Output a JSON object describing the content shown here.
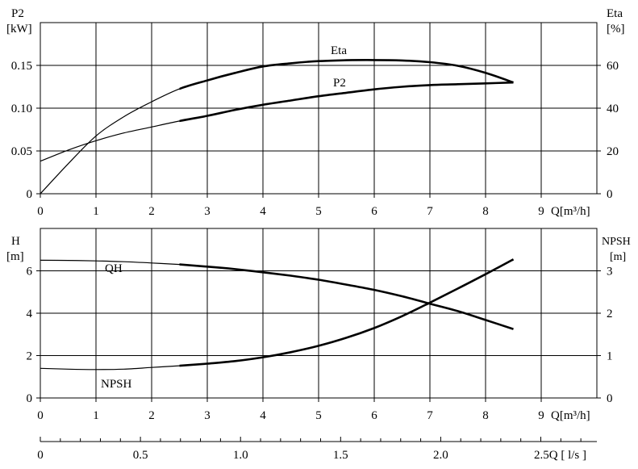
{
  "chart_data": [
    {
      "type": "line",
      "x_axis": {
        "label": "Q[m³/h]",
        "range": [
          0,
          10
        ],
        "tick_labels": [
          "0",
          "1",
          "2",
          "3",
          "4",
          "5",
          "6",
          "7",
          "8",
          "9"
        ]
      },
      "y_left": {
        "title": "P2",
        "unit": "[kW]",
        "range": [
          0,
          0.2
        ],
        "tick_labels": [
          "0",
          "0.05",
          "0.10",
          "0.15"
        ],
        "tick_values": [
          0,
          0.05,
          0.1,
          0.15
        ]
      },
      "y_right": {
        "title": "Eta",
        "unit": "[%]",
        "range": [
          0,
          80
        ],
        "tick_labels": [
          "0",
          "20",
          "40",
          "60"
        ],
        "tick_values": [
          0,
          20,
          40,
          60
        ]
      },
      "grid": true,
      "series": [
        {
          "name": "P2",
          "axis": "left",
          "x": [
            0,
            0.5,
            1,
            1.5,
            2,
            2.5,
            3,
            3.5,
            4,
            4.5,
            5,
            5.5,
            6,
            6.5,
            7,
            7.5,
            8,
            8.5
          ],
          "y": [
            0.038,
            0.051,
            0.062,
            0.071,
            0.078,
            0.085,
            0.091,
            0.098,
            0.104,
            0.109,
            0.114,
            0.118,
            0.122,
            0.125,
            0.127,
            0.128,
            0.129,
            0.13
          ]
        },
        {
          "name": "Eta",
          "axis": "right",
          "x": [
            0,
            0.5,
            1,
            1.5,
            2,
            2.5,
            3,
            3.5,
            4,
            4.5,
            5,
            5.5,
            6,
            6.5,
            7,
            7.5,
            8,
            8.5
          ],
          "y": [
            0,
            14,
            27,
            36,
            43,
            49,
            53,
            56.5,
            59.5,
            61,
            62,
            62.4,
            62.5,
            62.3,
            61.5,
            59.8,
            56.5,
            52
          ]
        }
      ]
    },
    {
      "type": "line",
      "x_axis": {
        "label": "Q[m³/h]",
        "range": [
          0,
          10
        ],
        "tick_labels": [
          "0",
          "1",
          "2",
          "3",
          "4",
          "5",
          "6",
          "7",
          "8",
          "9"
        ]
      },
      "x2_axis": {
        "label": "2.5Q [ l/s ]",
        "range": [
          0,
          2.78
        ],
        "tick_labels": [
          "0",
          "0.5",
          "1.0",
          "1.5",
          "2.0"
        ],
        "tick_values": [
          0,
          0.5,
          1.0,
          1.5,
          2.0
        ]
      },
      "y_left": {
        "title": "H",
        "unit": "[m]",
        "range": [
          0,
          8
        ],
        "tick_labels": [
          "0",
          "2",
          "4",
          "6"
        ],
        "tick_values": [
          0,
          2,
          4,
          6
        ]
      },
      "y_right": {
        "title": "NPSH",
        "unit": "[m]",
        "range": [
          0,
          4
        ],
        "tick_labels": [
          "0",
          "1",
          "2",
          "3"
        ],
        "tick_values": [
          0,
          1,
          2,
          3
        ]
      },
      "grid": true,
      "series": [
        {
          "name": "QH",
          "axis": "left",
          "x": [
            0,
            0.5,
            1,
            1.5,
            2,
            2.5,
            3,
            3.5,
            4,
            4.5,
            5,
            5.5,
            6,
            6.5,
            7,
            7.5,
            8,
            8.5
          ],
          "y": [
            6.5,
            6.49,
            6.47,
            6.43,
            6.37,
            6.3,
            6.2,
            6.08,
            5.93,
            5.77,
            5.58,
            5.35,
            5.1,
            4.8,
            4.45,
            4.1,
            3.68,
            3.25
          ]
        },
        {
          "name": "NPSH",
          "axis": "right",
          "x": [
            0,
            0.5,
            1,
            1.5,
            2,
            2.5,
            3,
            3.5,
            4,
            4.5,
            5,
            5.5,
            6,
            6.5,
            7,
            7.5,
            8,
            8.5
          ],
          "y": [
            0.7,
            0.68,
            0.67,
            0.68,
            0.72,
            0.76,
            0.81,
            0.87,
            0.96,
            1.08,
            1.23,
            1.42,
            1.65,
            1.93,
            2.25,
            2.58,
            2.92,
            3.27
          ]
        }
      ]
    }
  ]
}
